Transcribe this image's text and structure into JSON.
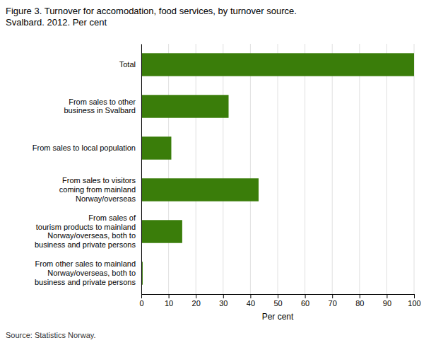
{
  "chart_data": {
    "type": "bar",
    "orientation": "horizontal",
    "title": "Figure 3. Turnover for accomodation, food services, by turnover source.\nSvalbard. 2012. Per cent",
    "categories": [
      "From other sales to mainland\nNorway/overseas, both to\nbusiness and private persons",
      "From sales of\ntourism products to mainland\nNorway/overseas, both to\nbusiness and private persons",
      "From sales to visitors\ncoming from mainland\nNorway/overseas",
      "From sales to local population",
      "From sales to other\nbusiness in Svalbard",
      "Total"
    ],
    "values": [
      0.5,
      15,
      43,
      11,
      32,
      100
    ],
    "color": "#3a7d0a",
    "xlabel": "Per cent",
    "xlim": [
      0,
      100
    ],
    "xticks": [
      0,
      10,
      20,
      30,
      40,
      50,
      60,
      70,
      80,
      90,
      100
    ],
    "grid": true,
    "annotations": [
      "Source: Statistics Norway."
    ]
  }
}
